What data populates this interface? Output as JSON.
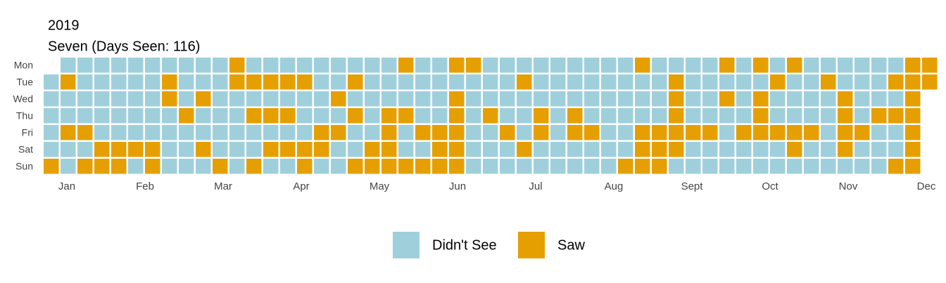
{
  "chart_data": {
    "type": "calendar-heatmap",
    "title": "2019",
    "subtitle": "Seven (Days Seen: 116)",
    "months": [
      "Jan",
      "Feb",
      "Mar",
      "Apr",
      "May",
      "Jun",
      "Jul",
      "Aug",
      "Sept",
      "Oct",
      "Nov",
      "Dec"
    ],
    "levels": [
      {
        "name": "Didn't See",
        "color": "#a0cfdc"
      },
      {
        "name": "Saw",
        "color": "#e69f00"
      }
    ],
    "series": [
      {
        "name": "Mon",
        "values": [
          null,
          0,
          0,
          0,
          0,
          0,
          0,
          0,
          0,
          0,
          0,
          1,
          0,
          0,
          0,
          0,
          0,
          0,
          0,
          0,
          0,
          1,
          0,
          0,
          1,
          1,
          0,
          0,
          0,
          0,
          0,
          0,
          0,
          0,
          0,
          1,
          0,
          0,
          0,
          0,
          1,
          0,
          1,
          0,
          1,
          0,
          0,
          0,
          0,
          0,
          0,
          1,
          1
        ]
      },
      {
        "name": "Tue",
        "values": [
          0,
          1,
          0,
          0,
          0,
          0,
          0,
          1,
          0,
          0,
          0,
          1,
          1,
          1,
          1,
          1,
          0,
          0,
          1,
          0,
          0,
          0,
          0,
          0,
          0,
          0,
          0,
          0,
          1,
          0,
          0,
          0,
          0,
          0,
          0,
          0,
          0,
          1,
          0,
          0,
          0,
          0,
          0,
          1,
          0,
          0,
          1,
          0,
          0,
          0,
          1,
          1,
          1
        ]
      },
      {
        "name": "Wed",
        "values": [
          0,
          0,
          0,
          0,
          0,
          0,
          0,
          1,
          0,
          1,
          0,
          0,
          0,
          0,
          0,
          0,
          0,
          1,
          0,
          0,
          0,
          0,
          0,
          0,
          1,
          0,
          0,
          0,
          0,
          0,
          0,
          0,
          0,
          0,
          0,
          0,
          0,
          1,
          0,
          0,
          1,
          0,
          1,
          0,
          0,
          0,
          0,
          1,
          0,
          0,
          0,
          1,
          null
        ]
      },
      {
        "name": "Thu",
        "values": [
          0,
          0,
          0,
          0,
          0,
          0,
          0,
          0,
          1,
          0,
          0,
          0,
          1,
          1,
          1,
          0,
          0,
          0,
          1,
          0,
          1,
          1,
          0,
          0,
          1,
          0,
          1,
          0,
          0,
          1,
          0,
          1,
          0,
          0,
          0,
          0,
          0,
          1,
          0,
          0,
          0,
          0,
          1,
          0,
          0,
          0,
          0,
          1,
          0,
          1,
          1,
          1,
          null
        ]
      },
      {
        "name": "Fri",
        "values": [
          0,
          1,
          1,
          0,
          0,
          0,
          0,
          0,
          0,
          0,
          0,
          0,
          0,
          0,
          0,
          0,
          1,
          1,
          0,
          0,
          1,
          0,
          1,
          1,
          1,
          0,
          0,
          1,
          0,
          1,
          0,
          1,
          1,
          0,
          0,
          1,
          1,
          1,
          1,
          1,
          0,
          1,
          1,
          1,
          1,
          1,
          0,
          1,
          1,
          0,
          0,
          1,
          null
        ]
      },
      {
        "name": "Sat",
        "values": [
          0,
          0,
          0,
          1,
          1,
          1,
          1,
          0,
          0,
          1,
          0,
          0,
          0,
          1,
          1,
          1,
          1,
          0,
          0,
          1,
          1,
          0,
          0,
          1,
          1,
          0,
          0,
          0,
          1,
          0,
          0,
          0,
          0,
          0,
          0,
          1,
          1,
          1,
          0,
          0,
          0,
          0,
          0,
          0,
          1,
          0,
          0,
          1,
          0,
          0,
          0,
          1,
          null
        ]
      },
      {
        "name": "Sun",
        "values": [
          1,
          0,
          1,
          1,
          1,
          0,
          1,
          0,
          0,
          0,
          1,
          0,
          1,
          0,
          0,
          1,
          0,
          0,
          1,
          1,
          1,
          1,
          1,
          1,
          1,
          0,
          0,
          0,
          0,
          0,
          0,
          0,
          0,
          0,
          1,
          1,
          1,
          0,
          0,
          0,
          0,
          0,
          0,
          0,
          0,
          0,
          0,
          0,
          0,
          0,
          1,
          1,
          null
        ]
      }
    ]
  }
}
